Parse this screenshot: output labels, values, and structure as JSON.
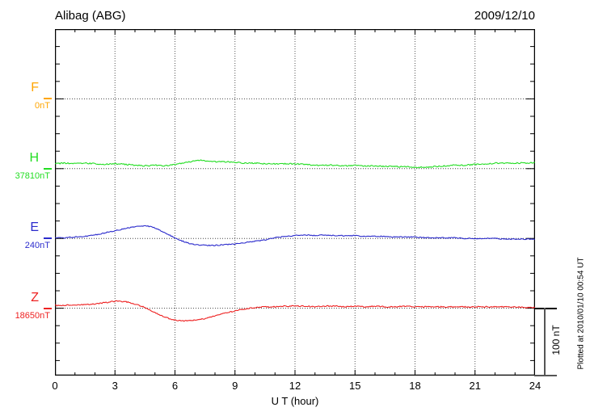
{
  "header": {
    "title": "Alibag (ABG)",
    "date": "2009/12/10"
  },
  "footer_note": "Plotted at 2010/01/10 00:54 UT",
  "scale_bar": {
    "label": "100 nT",
    "nT": 100
  },
  "chart_data": {
    "type": "line",
    "title": "Alibag (ABG)",
    "date": "2009/12/10",
    "xlabel": "U T (hour)",
    "x_range": [
      0,
      24
    ],
    "x_major_tick_hours": 3,
    "x_minor_tick_hours": 1,
    "x_tick_labels": [
      "0",
      "3",
      "6",
      "9",
      "12",
      "15",
      "18",
      "21",
      "24"
    ],
    "grid": "dotted vertical at 3h intervals, dotted horizontal at each component baseline",
    "y_scale": {
      "nT_per_division": 100,
      "minor_tick_nT": 25,
      "bar_label": "100 nT"
    },
    "series": [
      {
        "name": "F",
        "baseline_label": "0nT",
        "baseline_nT": 0,
        "color": "#FFA500",
        "noise_nT": 0,
        "points": []
      },
      {
        "name": "H",
        "baseline_label": "37810nT",
        "baseline_nT": 37810,
        "color": "#22DD22",
        "noise_nT": 0.9,
        "points": [
          [
            0,
            7
          ],
          [
            0.5,
            8
          ],
          [
            1,
            7
          ],
          [
            1.5,
            8
          ],
          [
            2,
            7
          ],
          [
            2.5,
            6
          ],
          [
            3,
            7
          ],
          [
            3.5,
            6
          ],
          [
            4,
            5
          ],
          [
            4.5,
            4
          ],
          [
            5,
            5
          ],
          [
            5.5,
            4
          ],
          [
            6,
            6
          ],
          [
            6.5,
            9
          ],
          [
            7,
            11
          ],
          [
            7.3,
            12
          ],
          [
            7.6,
            11
          ],
          [
            8,
            10
          ],
          [
            8.5,
            10
          ],
          [
            9,
            9
          ],
          [
            9.5,
            8
          ],
          [
            10,
            8
          ],
          [
            10.5,
            7
          ],
          [
            11,
            7
          ],
          [
            11.5,
            7
          ],
          [
            12,
            7
          ],
          [
            12.5,
            6
          ],
          [
            13,
            5
          ],
          [
            13.5,
            5
          ],
          [
            14,
            5
          ],
          [
            14.5,
            4
          ],
          [
            15,
            5
          ],
          [
            15.5,
            4
          ],
          [
            16,
            4
          ],
          [
            16.5,
            3
          ],
          [
            17,
            3
          ],
          [
            17.5,
            3
          ],
          [
            18,
            2
          ],
          [
            18.5,
            2
          ],
          [
            19,
            3
          ],
          [
            19.5,
            4
          ],
          [
            20,
            5
          ],
          [
            20.5,
            5
          ],
          [
            21,
            6
          ],
          [
            21.5,
            6
          ],
          [
            22,
            8
          ],
          [
            22.5,
            8
          ],
          [
            23,
            8
          ],
          [
            23.5,
            8
          ],
          [
            24,
            9
          ]
        ]
      },
      {
        "name": "E",
        "baseline_label": "240nT",
        "baseline_nT": 240,
        "color": "#2B2BCC",
        "noise_nT": 0.7,
        "points": [
          [
            0,
            1
          ],
          [
            0.5,
            1
          ],
          [
            1,
            2
          ],
          [
            1.5,
            3
          ],
          [
            2,
            5
          ],
          [
            2.5,
            8
          ],
          [
            3,
            11
          ],
          [
            3.5,
            14
          ],
          [
            4,
            17
          ],
          [
            4.3,
            18
          ],
          [
            4.6,
            18
          ],
          [
            5,
            15
          ],
          [
            5.5,
            8
          ],
          [
            6,
            1
          ],
          [
            6.3,
            -3
          ],
          [
            6.7,
            -7
          ],
          [
            7,
            -9
          ],
          [
            7.5,
            -10
          ],
          [
            8,
            -10
          ],
          [
            8.5,
            -9
          ],
          [
            9,
            -8
          ],
          [
            9.5,
            -6
          ],
          [
            10,
            -4
          ],
          [
            10.5,
            -2
          ],
          [
            11,
            1
          ],
          [
            11.5,
            3
          ],
          [
            12,
            4
          ],
          [
            12.5,
            5
          ],
          [
            13,
            4
          ],
          [
            13.5,
            5
          ],
          [
            14,
            4
          ],
          [
            14.5,
            4
          ],
          [
            15,
            4
          ],
          [
            15.5,
            3
          ],
          [
            16,
            3
          ],
          [
            16.5,
            3
          ],
          [
            17,
            2
          ],
          [
            17.5,
            2
          ],
          [
            18,
            2
          ],
          [
            18.5,
            1
          ],
          [
            19,
            1
          ],
          [
            19.5,
            1
          ],
          [
            20,
            1
          ],
          [
            20.5,
            0
          ],
          [
            21,
            0
          ],
          [
            21.5,
            0
          ],
          [
            22,
            0
          ],
          [
            22.5,
            -1
          ],
          [
            23,
            -1
          ],
          [
            23.5,
            -1
          ],
          [
            24,
            -1
          ]
        ]
      },
      {
        "name": "Z",
        "baseline_label": "18650nT",
        "baseline_nT": 18650,
        "color": "#EE2222",
        "noise_nT": 0.8,
        "points": [
          [
            0,
            4
          ],
          [
            0.5,
            4
          ],
          [
            1,
            5
          ],
          [
            1.5,
            5
          ],
          [
            2,
            6
          ],
          [
            2.5,
            8
          ],
          [
            3,
            10
          ],
          [
            3.3,
            10
          ],
          [
            3.6,
            9
          ],
          [
            4,
            6
          ],
          [
            4.5,
            1
          ],
          [
            5,
            -6
          ],
          [
            5.5,
            -13
          ],
          [
            6,
            -17
          ],
          [
            6.3,
            -18
          ],
          [
            6.7,
            -18
          ],
          [
            7,
            -17
          ],
          [
            7.5,
            -15
          ],
          [
            8,
            -11
          ],
          [
            8.5,
            -7
          ],
          [
            9,
            -4
          ],
          [
            9.5,
            -1
          ],
          [
            10,
            1
          ],
          [
            10.5,
            2
          ],
          [
            11,
            2
          ],
          [
            11.5,
            3
          ],
          [
            12,
            3
          ],
          [
            12.5,
            3
          ],
          [
            13,
            2
          ],
          [
            13.5,
            3
          ],
          [
            14,
            3
          ],
          [
            14.5,
            2
          ],
          [
            15,
            3
          ],
          [
            15.5,
            2
          ],
          [
            16,
            3
          ],
          [
            16.5,
            2
          ],
          [
            17,
            2
          ],
          [
            17.5,
            3
          ],
          [
            18,
            2
          ],
          [
            18.5,
            2
          ],
          [
            19,
            2
          ],
          [
            19.5,
            2
          ],
          [
            20,
            2
          ],
          [
            20.5,
            2
          ],
          [
            21,
            2
          ],
          [
            21.5,
            2
          ],
          [
            22,
            2
          ],
          [
            22.5,
            2
          ],
          [
            23,
            2
          ],
          [
            23.5,
            1
          ],
          [
            24,
            1
          ]
        ]
      }
    ]
  }
}
